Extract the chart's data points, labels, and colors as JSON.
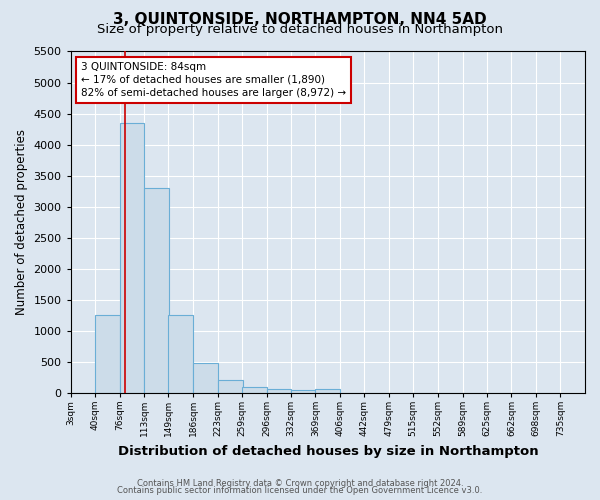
{
  "title": "3, QUINTONSIDE, NORTHAMPTON, NN4 5AD",
  "subtitle": "Size of property relative to detached houses in Northampton",
  "xlabel": "Distribution of detached houses by size in Northampton",
  "ylabel": "Number of detached properties",
  "footnote1": "Contains HM Land Registry data © Crown copyright and database right 2024.",
  "footnote2": "Contains public sector information licensed under the Open Government Licence v3.0.",
  "bin_labels": [
    "3sqm",
    "40sqm",
    "76sqm",
    "113sqm",
    "149sqm",
    "186sqm",
    "223sqm",
    "259sqm",
    "296sqm",
    "332sqm",
    "369sqm",
    "406sqm",
    "442sqm",
    "479sqm",
    "515sqm",
    "552sqm",
    "589sqm",
    "625sqm",
    "662sqm",
    "698sqm",
    "735sqm"
  ],
  "bin_edges": [
    3,
    40,
    76,
    113,
    149,
    186,
    223,
    259,
    296,
    332,
    369,
    406,
    442,
    479,
    515,
    552,
    589,
    625,
    662,
    698,
    735
  ],
  "bar_heights": [
    0,
    1250,
    4350,
    3300,
    1250,
    480,
    210,
    90,
    60,
    40,
    65,
    0,
    0,
    0,
    0,
    0,
    0,
    0,
    0,
    0
  ],
  "bar_color": "#ccdce9",
  "bar_edge_color": "#6aaed6",
  "property_size": 84,
  "property_line_color": "#cc0000",
  "annotation_line1": "3 QUINTONSIDE: 84sqm",
  "annotation_line2": "← 17% of detached houses are smaller (1,890)",
  "annotation_line3": "82% of semi-detached houses are larger (8,972) →",
  "annotation_box_color": "white",
  "annotation_box_edge_color": "#cc0000",
  "ylim": [
    0,
    5500
  ],
  "yticks": [
    0,
    500,
    1000,
    1500,
    2000,
    2500,
    3000,
    3500,
    4000,
    4500,
    5000,
    5500
  ],
  "background_color": "#dce6f0",
  "plot_bg_color": "#dce6f0",
  "grid_color": "white",
  "title_fontsize": 11,
  "subtitle_fontsize": 9.5,
  "xlabel_fontsize": 9.5,
  "ylabel_fontsize": 8.5
}
